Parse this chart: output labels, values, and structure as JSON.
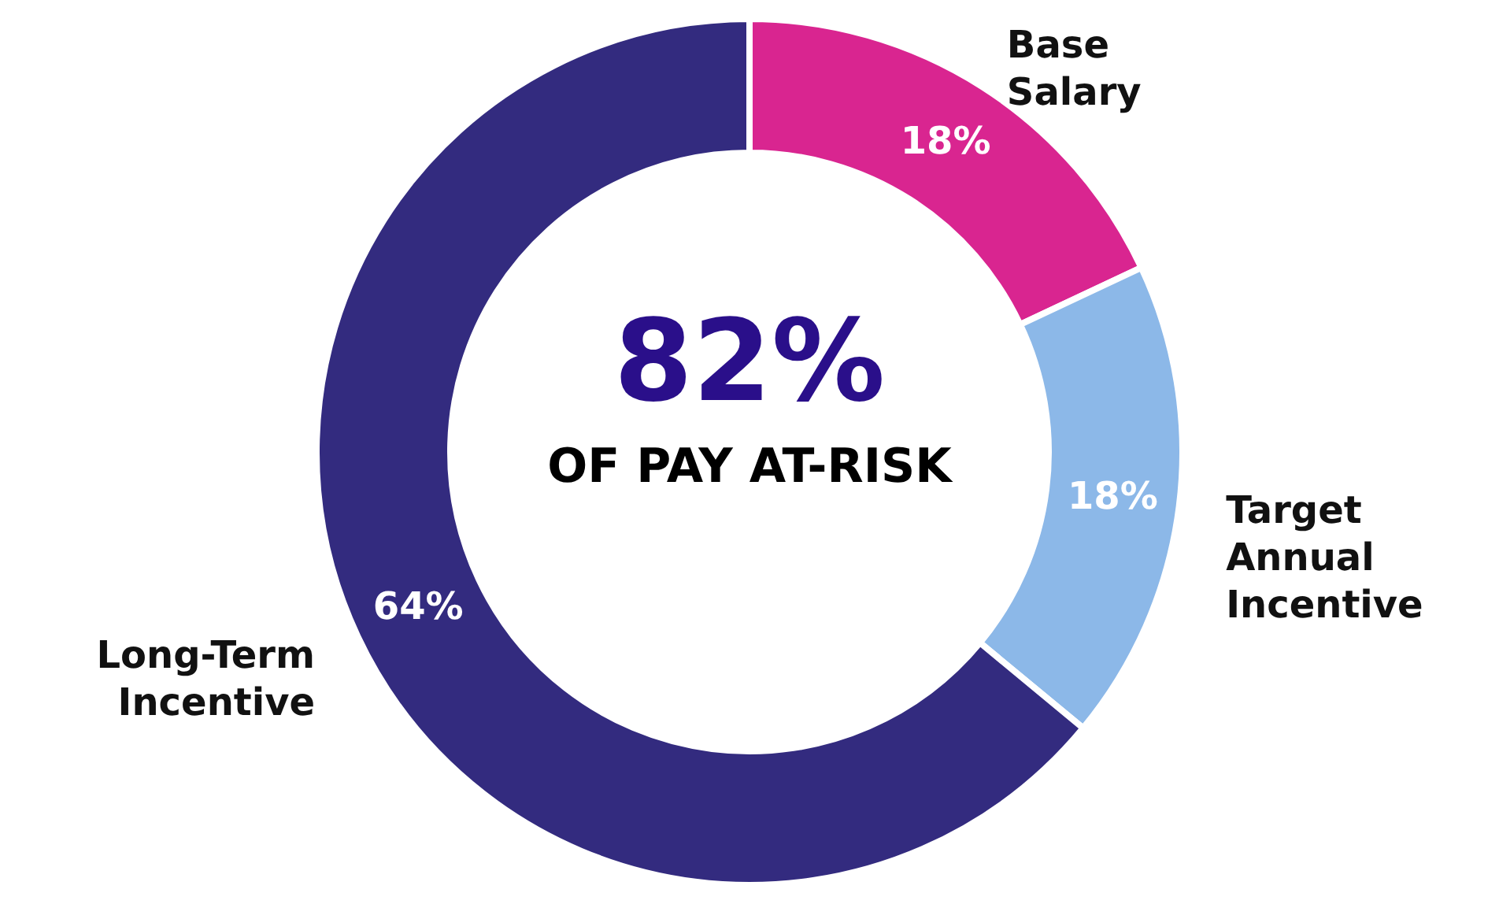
{
  "chart_data": {
    "type": "donut",
    "categories": [
      "Base Salary",
      "Target Annual Incentive",
      "Long-Term Incentive"
    ],
    "values": [
      18,
      18,
      64
    ],
    "colors": [
      "#d92590",
      "#8cb8e8",
      "#332b7f"
    ],
    "value_labels": [
      "18%",
      "18%",
      "64%"
    ],
    "annotations": [
      "82%",
      "OF PAY AT-RISK"
    ]
  }
}
